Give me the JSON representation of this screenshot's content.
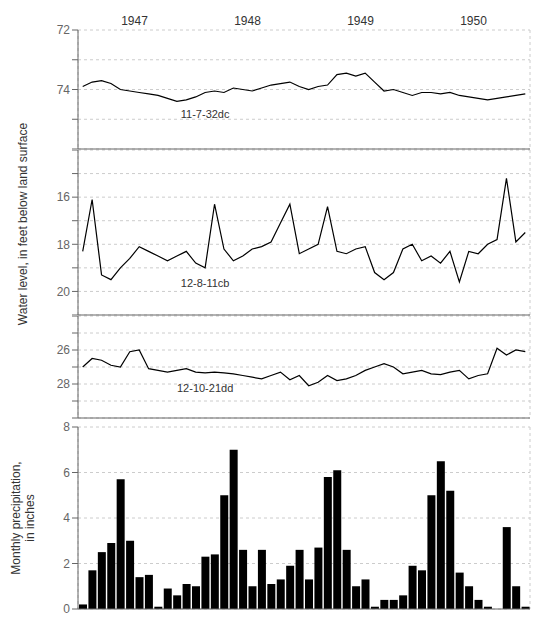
{
  "chart_data": [
    {
      "type": "line",
      "annotations": [
        {
          "text": "1947",
          "x": 5.5
        },
        {
          "text": "1948",
          "x": 17.5
        },
        {
          "text": "1949",
          "x": 29.5
        },
        {
          "text": "1950",
          "x": 41.5
        },
        {
          "text": "11-7-32dc",
          "x": 13,
          "y": 74.55
        }
      ],
      "x": [
        0,
        1,
        2,
        3,
        4,
        5,
        6,
        7,
        8,
        9,
        10,
        11,
        12,
        13,
        14,
        15,
        16,
        17,
        18,
        19,
        20,
        21,
        22,
        23,
        24,
        25,
        26,
        27,
        28,
        29,
        30,
        31,
        32,
        33,
        34,
        35,
        36,
        37,
        38,
        39,
        40,
        41,
        42,
        43,
        44,
        45,
        46,
        47
      ],
      "values": [
        73.9,
        73.75,
        73.7,
        73.8,
        74.0,
        74.05,
        74.1,
        74.15,
        74.2,
        74.3,
        74.4,
        74.35,
        74.25,
        74.1,
        74.05,
        74.1,
        73.95,
        74.0,
        74.05,
        73.95,
        73.85,
        73.8,
        73.75,
        73.9,
        74.0,
        73.9,
        73.85,
        73.5,
        73.45,
        73.55,
        73.45,
        73.75,
        74.05,
        74.0,
        74.1,
        74.2,
        74.1,
        74.1,
        74.15,
        74.1,
        74.2,
        74.25,
        74.3,
        74.35,
        74.3,
        74.25,
        74.2,
        74.15
      ],
      "color": "#000000",
      "xlim": [
        -0.5,
        47.5
      ],
      "xticks": [
        11.5,
        23.5,
        35.5
      ],
      "ylim": [
        76,
        72
      ],
      "yticks": [
        72,
        {
          "value": 73,
          "label": null
        },
        74,
        {
          "value": 75,
          "label": null
        },
        {
          "value": 76,
          "label": null
        }
      ],
      "grid": true,
      "tick_labels": "y"
    },
    {
      "type": "line",
      "ylabel": "Water level, in feet below land surface",
      "annotations": [
        {
          "text": "12-8-11cb",
          "x": 13,
          "y": 19.3
        }
      ],
      "x": [
        0,
        1,
        2,
        3,
        4,
        5,
        6,
        7,
        8,
        9,
        10,
        11,
        12,
        13,
        14,
        15,
        16,
        17,
        18,
        19,
        20,
        21,
        22,
        23,
        24,
        25,
        26,
        27,
        28,
        29,
        30,
        31,
        32,
        33,
        34,
        35,
        36,
        37,
        38,
        39,
        40,
        41,
        42,
        43,
        44,
        45,
        46,
        47
      ],
      "values": [
        18.3,
        16.1,
        19.3,
        19.5,
        19.0,
        18.6,
        18.1,
        18.3,
        18.5,
        18.7,
        18.5,
        18.3,
        18.8,
        19.0,
        16.3,
        18.2,
        18.7,
        18.5,
        18.2,
        18.1,
        17.9,
        17.1,
        16.3,
        18.4,
        18.2,
        18.0,
        16.4,
        18.3,
        18.4,
        18.2,
        18.1,
        19.2,
        19.5,
        19.2,
        18.2,
        18.0,
        18.7,
        18.5,
        18.8,
        18.3,
        19.6,
        18.3,
        18.4,
        18.0,
        17.8,
        15.2,
        17.9,
        17.5
      ],
      "color": "#000000",
      "xlim": [
        -0.5,
        47.5
      ],
      "xticks": [
        11.5,
        23.5,
        35.5
      ],
      "ylim": [
        21,
        14
      ],
      "yticks": [
        {
          "value": 14,
          "label": null
        },
        {
          "value": 15,
          "label": null
        },
        16,
        {
          "value": 17,
          "label": null
        },
        18,
        {
          "value": 19,
          "label": null
        },
        20,
        {
          "value": 21,
          "label": null
        }
      ],
      "grid": true,
      "tick_labels": "y"
    },
    {
      "type": "line",
      "annotations": [
        {
          "text": "12-10-21dd",
          "x": 13,
          "y": 27.75
        }
      ],
      "x": [
        0,
        1,
        2,
        3,
        4,
        5,
        6,
        7,
        8,
        9,
        10,
        11,
        12,
        13,
        14,
        15,
        16,
        17,
        18,
        19,
        20,
        21,
        22,
        23,
        24,
        25,
        26,
        27,
        28,
        29,
        30,
        31,
        32,
        33,
        34,
        35,
        36,
        37,
        38,
        39,
        40,
        41,
        42,
        43,
        44,
        45,
        46,
        47
      ],
      "values": [
        27.0,
        26.5,
        26.6,
        26.9,
        27.0,
        26.1,
        26.0,
        27.1,
        27.2,
        27.3,
        27.2,
        27.1,
        27.3,
        27.35,
        27.3,
        27.35,
        27.4,
        27.5,
        27.6,
        27.7,
        27.5,
        27.3,
        27.75,
        27.5,
        28.1,
        27.9,
        27.5,
        27.8,
        27.7,
        27.5,
        27.2,
        27.0,
        26.8,
        27.0,
        27.4,
        27.3,
        27.2,
        27.4,
        27.45,
        27.3,
        27.2,
        27.7,
        27.5,
        27.4,
        25.9,
        26.3,
        26.0,
        26.1
      ],
      "color": "#000000",
      "xlim": [
        -0.5,
        47.5
      ],
      "xticks": [
        11.5,
        23.5,
        35.5
      ],
      "ylim": [
        30,
        24
      ],
      "yticks": [
        {
          "value": 24,
          "label": null
        },
        {
          "value": 25,
          "label": null
        },
        26,
        {
          "value": 27,
          "label": null
        },
        28,
        {
          "value": 29,
          "label": null
        },
        {
          "value": 30,
          "label": null
        }
      ],
      "grid": true,
      "tick_labels": "y"
    },
    {
      "type": "bar",
      "ylabel": "Monthly precipitation,\nin inches",
      "x": [
        0,
        1,
        2,
        3,
        4,
        5,
        6,
        7,
        8,
        9,
        10,
        11,
        12,
        13,
        14,
        15,
        16,
        17,
        18,
        19,
        20,
        21,
        22,
        23,
        24,
        25,
        26,
        27,
        28,
        29,
        30,
        31,
        32,
        33,
        34,
        35,
        36,
        37,
        38,
        39,
        40,
        41,
        42,
        43,
        44,
        45,
        46,
        47
      ],
      "values": [
        0.2,
        1.7,
        2.5,
        2.9,
        5.7,
        3.0,
        1.4,
        1.5,
        0.1,
        0.9,
        0.6,
        1.1,
        1.0,
        2.3,
        2.4,
        5.0,
        7.0,
        2.6,
        1.0,
        2.6,
        1.1,
        1.3,
        1.9,
        2.6,
        1.3,
        2.7,
        5.8,
        6.1,
        2.6,
        1.0,
        1.3,
        0.1,
        0.4,
        0.4,
        0.6,
        1.9,
        1.7,
        5.0,
        6.5,
        5.2,
        1.6,
        1.0,
        0.4,
        0.1,
        0.0,
        3.6,
        1.0,
        0.1
      ],
      "xlim": [
        -0.5,
        47.5
      ],
      "xticks": [
        11.5,
        23.5,
        35.5
      ],
      "ylim": [
        0,
        8
      ],
      "yticks": [
        0,
        2,
        4,
        6,
        8
      ],
      "grid": true,
      "tick_labels": "y"
    }
  ]
}
